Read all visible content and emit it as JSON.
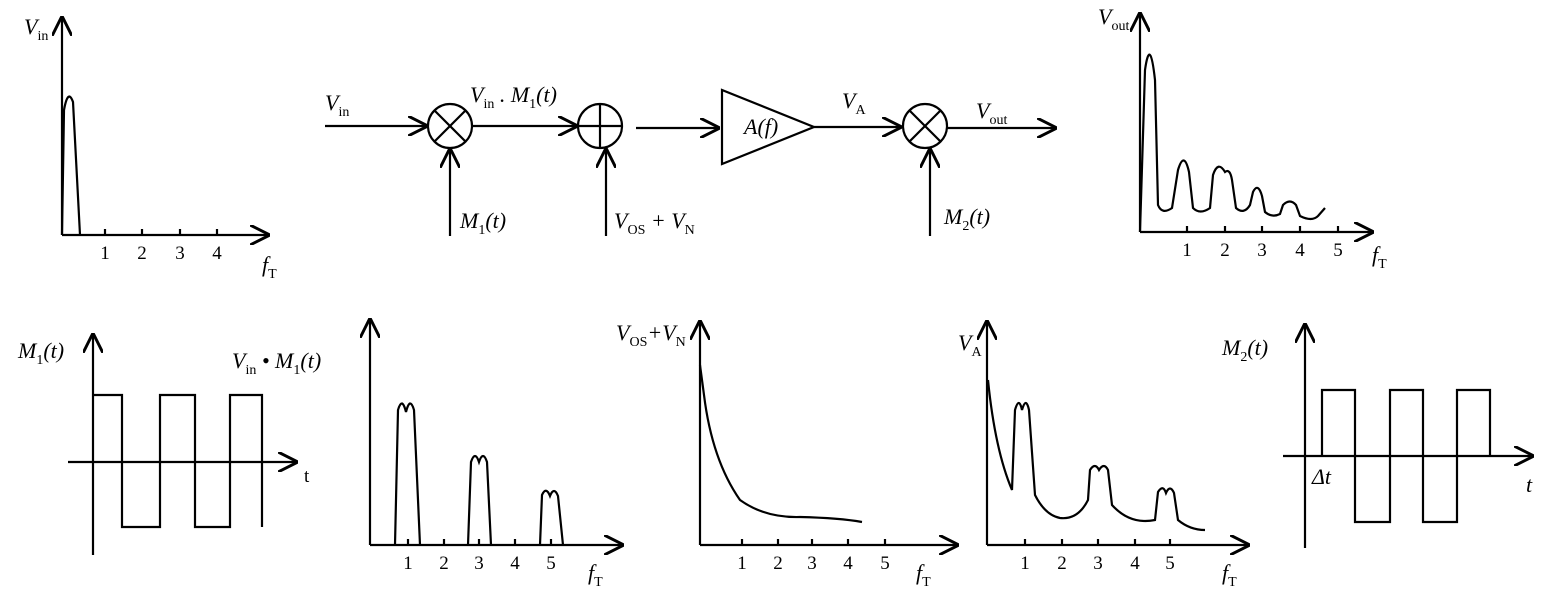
{
  "input_spectrum": {
    "y_label": {
      "base": "V",
      "sub": "in"
    },
    "ticks": [
      "1",
      "2",
      "3",
      "4"
    ],
    "x_label": {
      "base": "f",
      "sub": "T"
    }
  },
  "block_diagram": {
    "input": {
      "base": "V",
      "sub": "in"
    },
    "product": {
      "base": "V",
      "sub": "in",
      "operator": " . M",
      "factor_sub": "1",
      "argument": "(t)"
    },
    "modulator_1": {
      "base": "M",
      "sub": "1",
      "argument": "(t)"
    },
    "error": {
      "base": "V",
      "sub": "OS",
      "operator": " + V",
      "term_sub": "N"
    },
    "amplifier": {
      "base": "A(f)"
    },
    "amplified": {
      "base": "V",
      "sub": "A"
    },
    "output": {
      "base": "V",
      "sub": "out"
    },
    "modulator_2": {
      "base": "M",
      "sub": "2",
      "argument": "(t)"
    }
  },
  "output_spectrum": {
    "y_label": {
      "base": "V",
      "sub": "out"
    },
    "ticks": [
      "1",
      "2",
      "3",
      "4",
      "5"
    ],
    "x_label": {
      "base": "f",
      "sub": "T"
    }
  },
  "modulator_1_wave": {
    "y_label": {
      "base": "M",
      "sub": "1",
      "argument": "(t)"
    },
    "x_label": {
      "base": "t"
    }
  },
  "product_spectrum": {
    "y_label": {
      "base": "V",
      "sub": "in",
      "operator": " • M",
      "factor_sub": "1",
      "argument": "(t)"
    },
    "ticks": [
      "1",
      "2",
      "3",
      "4",
      "5"
    ],
    "x_label": {
      "base": "f",
      "sub": "T"
    }
  },
  "error_spectrum": {
    "y_label": {
      "base": "V",
      "sub": "OS",
      "operator": "+V",
      "term_sub": "N"
    },
    "ticks": [
      "1",
      "2",
      "3",
      "4",
      "5"
    ],
    "x_label": {
      "base": "f",
      "sub": "T"
    }
  },
  "amplified_spectrum": {
    "y_label": {
      "base": "V",
      "sub": "A"
    },
    "ticks": [
      "1",
      "2",
      "3",
      "4",
      "5"
    ],
    "x_label": {
      "base": "f",
      "sub": "T"
    }
  },
  "modulator_2_wave": {
    "y_label": {
      "base": "M",
      "sub": "2",
      "argument": "(t)"
    },
    "delay": {
      "base": "Δt"
    },
    "x_label": {
      "base": "t"
    }
  }
}
